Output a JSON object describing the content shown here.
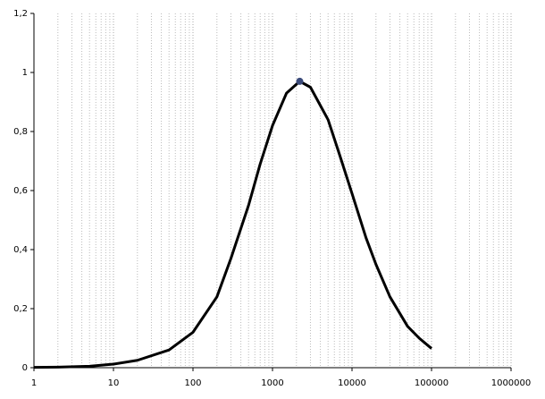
{
  "chart_data": {
    "type": "line",
    "x": [
      1,
      2,
      5,
      10,
      20,
      50,
      100,
      200,
      300,
      500,
      700,
      1000,
      1500,
      2200,
      3000,
      5000,
      7000,
      10000,
      15000,
      20000,
      30000,
      50000,
      70000,
      100000
    ],
    "values": [
      0.001,
      0.002,
      0.005,
      0.012,
      0.025,
      0.06,
      0.12,
      0.24,
      0.37,
      0.55,
      0.69,
      0.82,
      0.93,
      0.97,
      0.95,
      0.84,
      0.72,
      0.59,
      0.44,
      0.35,
      0.24,
      0.14,
      0.1,
      0.065
    ],
    "color": "#000000",
    "marker": {
      "x": 2200,
      "y": 0.97,
      "color": "#3b4a7a"
    },
    "xlog": true,
    "xlim": [
      1,
      1000000
    ],
    "xticks": [
      1,
      10,
      100,
      1000,
      10000,
      100000,
      1000000
    ],
    "x_minor_ticks": [
      2,
      3,
      4,
      5,
      6,
      7,
      8,
      9,
      20,
      30,
      40,
      50,
      60,
      70,
      80,
      90,
      200,
      300,
      400,
      500,
      600,
      700,
      800,
      900,
      2000,
      3000,
      4000,
      5000,
      6000,
      7000,
      8000,
      9000,
      20000,
      30000,
      40000,
      50000,
      60000,
      70000,
      80000,
      90000,
      200000,
      300000,
      400000,
      500000,
      600000,
      700000,
      800000,
      900000
    ],
    "ylim": [
      0,
      1.2
    ],
    "yticks": [
      0,
      {
        "value": 0.2,
        "label": "0,2"
      },
      {
        "value": 0.4,
        "label": "0,4"
      },
      {
        "value": 0.6,
        "label": "0,6"
      },
      {
        "value": 0.8,
        "label": "0,8"
      },
      1,
      {
        "value": 1.2,
        "label": "1,2"
      }
    ],
    "grid": true
  }
}
